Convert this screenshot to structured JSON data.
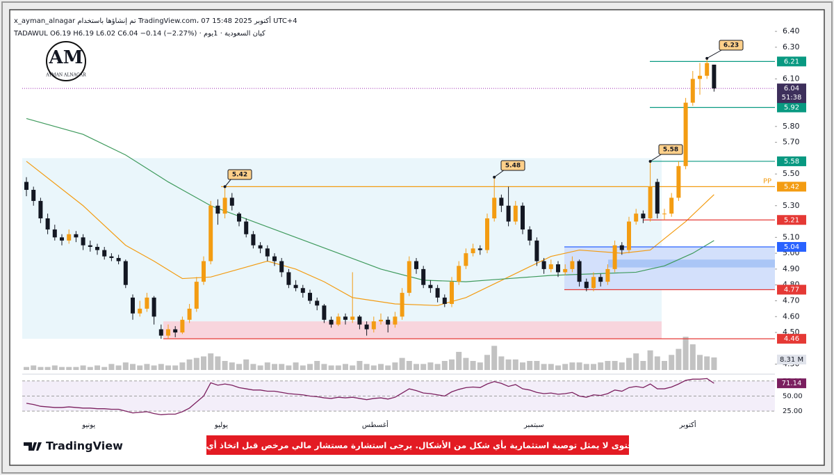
{
  "header": {
    "line1": "x_ayman_alnagar تم إنشاؤها باستخدام TradingView.com، 07 أكتوبر 2025 15:48 UTC+4",
    "line2": "كيان السعودية · 1يوم · TADAWUL   O6.19  H6.19  L6.02  C6.04  −0.14 (−2.27%)"
  },
  "logo": {
    "initials": "AM",
    "name": "AYMAN ALNAGAR"
  },
  "footer": {
    "brand": "TradingView",
    "disclaimer": "هذا المحتوى لا يمثل توصية استثمارية بأي شكل من الأشكال. يرجى استشارة مستشار مالي مرخص قبل اتخاذ أي قرارات"
  },
  "chart_data": {
    "type": "candlestick",
    "up_color": "#f39c12",
    "down_color": "#131722",
    "ylim": [
      4.25,
      6.44
    ],
    "yticks": [
      {
        "value": 6.4,
        "label": "6.40"
      },
      {
        "value": 6.3,
        "label": "6.30"
      },
      {
        "value": 6.1,
        "label": "6.10"
      },
      {
        "value": 5.8,
        "label": "5.80"
      },
      {
        "value": 5.7,
        "label": "5.70"
      },
      {
        "value": 5.5,
        "label": "5.50"
      },
      {
        "value": 5.3,
        "label": "5.30"
      },
      {
        "value": 5.1,
        "label": "5.10"
      },
      {
        "value": 5,
        "label": "5.00"
      },
      {
        "value": 4.9,
        "label": "4.90"
      },
      {
        "value": 4.8,
        "label": "4.80"
      },
      {
        "value": 4.7,
        "label": "4.70"
      },
      {
        "value": 4.6,
        "label": "4.60"
      },
      {
        "value": 4.5,
        "label": "4.50"
      },
      {
        "value": 4.3,
        "label": "4.30"
      }
    ],
    "xticks": [
      {
        "value": 8.8,
        "label": "يونيو"
      },
      {
        "value": 27.5,
        "label": "يوليو"
      },
      {
        "value": 49.2,
        "label": "أغسطس"
      },
      {
        "value": 71.6,
        "label": "سبتمبر"
      },
      {
        "value": 93.3,
        "label": "أكتوبر"
      }
    ],
    "ohlc": [
      [
        5.45,
        5.48,
        5.36,
        5.4
      ],
      [
        5.4,
        5.42,
        5.3,
        5.33
      ],
      [
        5.33,
        5.35,
        5.19,
        5.22
      ],
      [
        5.22,
        5.25,
        5.12,
        5.15
      ],
      [
        5.15,
        5.18,
        5.08,
        5.1
      ],
      [
        5.1,
        5.12,
        5.05,
        5.08
      ],
      [
        5.08,
        5.15,
        5.06,
        5.12
      ],
      [
        5.12,
        5.14,
        5.07,
        5.1
      ],
      [
        5.1,
        5.12,
        5.02,
        5.05
      ],
      [
        5.05,
        5.08,
        5.01,
        5.04
      ],
      [
        5.04,
        5.06,
        4.99,
        5.02
      ],
      [
        5.02,
        5.04,
        4.96,
        4.98
      ],
      [
        4.98,
        5.0,
        4.95,
        4.97
      ],
      [
        4.97,
        4.99,
        4.93,
        4.95
      ],
      [
        4.95,
        4.96,
        4.78,
        4.8
      ],
      [
        4.72,
        4.74,
        4.58,
        4.62
      ],
      [
        4.62,
        4.7,
        4.6,
        4.65
      ],
      [
        4.65,
        4.75,
        4.63,
        4.72
      ],
      [
        4.72,
        4.73,
        4.55,
        4.6
      ],
      [
        4.52,
        4.55,
        4.46,
        4.48
      ],
      [
        4.48,
        4.55,
        4.46,
        4.52
      ],
      [
        4.52,
        4.54,
        4.47,
        4.5
      ],
      [
        4.5,
        4.6,
        4.49,
        4.58
      ],
      [
        4.58,
        4.68,
        4.56,
        4.65
      ],
      [
        4.65,
        4.85,
        4.63,
        4.82
      ],
      [
        4.82,
        4.98,
        4.8,
        4.95
      ],
      [
        4.95,
        5.33,
        4.93,
        5.3
      ],
      [
        5.3,
        5.34,
        5.18,
        5.25
      ],
      [
        5.25,
        5.42,
        5.22,
        5.35
      ],
      [
        5.35,
        5.38,
        5.27,
        5.3
      ],
      [
        5.25,
        5.26,
        5.17,
        5.2
      ],
      [
        5.2,
        5.22,
        5.1,
        5.12
      ],
      [
        5.12,
        5.14,
        5.03,
        5.05
      ],
      [
        5.05,
        5.07,
        5.0,
        5.03
      ],
      [
        5.03,
        5.05,
        4.95,
        4.98
      ],
      [
        4.98,
        5.0,
        4.92,
        4.95
      ],
      [
        4.95,
        4.97,
        4.85,
        4.88
      ],
      [
        4.88,
        4.9,
        4.78,
        4.8
      ],
      [
        4.8,
        4.83,
        4.76,
        4.78
      ],
      [
        4.78,
        4.8,
        4.72,
        4.75
      ],
      [
        4.75,
        4.77,
        4.68,
        4.7
      ],
      [
        4.7,
        4.72,
        4.64,
        4.67
      ],
      [
        4.67,
        4.68,
        4.56,
        4.58
      ],
      [
        4.58,
        4.6,
        4.53,
        4.55
      ],
      [
        4.55,
        4.62,
        4.54,
        4.6
      ],
      [
        4.6,
        4.62,
        4.55,
        4.58
      ],
      [
        4.58,
        4.88,
        4.56,
        4.6
      ],
      [
        4.6,
        4.61,
        4.52,
        4.55
      ],
      [
        4.55,
        4.57,
        4.48,
        4.52
      ],
      [
        4.52,
        4.6,
        4.5,
        4.57
      ],
      [
        4.57,
        4.62,
        4.55,
        4.58
      ],
      [
        4.58,
        4.6,
        4.5,
        4.55
      ],
      [
        4.55,
        4.63,
        4.53,
        4.6
      ],
      [
        4.6,
        4.78,
        4.58,
        4.75
      ],
      [
        4.75,
        4.98,
        4.73,
        4.95
      ],
      [
        4.95,
        4.97,
        4.87,
        4.9
      ],
      [
        4.9,
        4.92,
        4.78,
        4.8
      ],
      [
        4.8,
        4.83,
        4.75,
        4.78
      ],
      [
        4.78,
        4.8,
        4.69,
        4.72
      ],
      [
        4.72,
        4.74,
        4.66,
        4.68
      ],
      [
        4.68,
        4.85,
        4.66,
        4.82
      ],
      [
        4.82,
        4.95,
        4.8,
        4.92
      ],
      [
        4.92,
        5.03,
        4.9,
        5.0
      ],
      [
        5.0,
        5.06,
        4.98,
        5.03
      ],
      [
        5.03,
        5.05,
        4.99,
        5.02
      ],
      [
        5.02,
        5.25,
        5.0,
        5.22
      ],
      [
        5.22,
        5.48,
        5.2,
        5.35
      ],
      [
        5.35,
        5.37,
        5.26,
        5.3
      ],
      [
        5.3,
        5.42,
        5.17,
        5.2
      ],
      [
        5.2,
        5.33,
        5.18,
        5.3
      ],
      [
        5.3,
        5.32,
        5.12,
        5.15
      ],
      [
        5.15,
        5.17,
        5.05,
        5.08
      ],
      [
        5.08,
        5.1,
        4.92,
        4.95
      ],
      [
        4.95,
        4.97,
        4.87,
        4.9
      ],
      [
        4.9,
        4.96,
        4.88,
        4.93
      ],
      [
        4.93,
        4.95,
        4.85,
        4.88
      ],
      [
        4.88,
        4.93,
        4.86,
        4.9
      ],
      [
        4.9,
        4.98,
        4.88,
        4.95
      ],
      [
        4.95,
        4.96,
        4.79,
        4.82
      ],
      [
        4.82,
        4.84,
        4.76,
        4.78
      ],
      [
        4.78,
        4.88,
        4.76,
        4.85
      ],
      [
        4.85,
        4.87,
        4.79,
        4.82
      ],
      [
        4.82,
        4.93,
        4.8,
        4.9
      ],
      [
        4.9,
        5.08,
        4.88,
        5.05
      ],
      [
        5.05,
        5.07,
        4.99,
        5.02
      ],
      [
        5.02,
        5.23,
        5.0,
        5.2
      ],
      [
        5.2,
        5.28,
        5.18,
        5.25
      ],
      [
        5.25,
        5.27,
        5.19,
        5.22
      ],
      [
        5.22,
        5.58,
        5.2,
        5.42
      ],
      [
        5.45,
        5.47,
        5.22,
        5.25
      ],
      [
        5.25,
        5.28,
        5.21,
        5.25
      ],
      [
        5.25,
        5.38,
        5.23,
        5.35
      ],
      [
        5.35,
        5.58,
        5.33,
        5.55
      ],
      [
        5.55,
        5.98,
        5.53,
        5.95
      ],
      [
        5.95,
        6.15,
        5.93,
        6.1
      ],
      [
        6.1,
        6.2,
        6.0,
        6.12
      ],
      [
        6.12,
        6.23,
        6.1,
        6.2
      ],
      [
        6.19,
        6.19,
        6.02,
        6.04
      ]
    ],
    "moving_averages": [
      {
        "color": "#f39c12",
        "x": [
          0,
          8,
          14,
          18,
          22,
          26,
          30,
          34,
          38,
          42,
          46,
          52,
          58,
          62,
          68,
          74,
          78,
          84,
          88,
          93,
          97
        ],
        "values": [
          5.58,
          5.3,
          5.05,
          4.95,
          4.84,
          4.85,
          4.9,
          4.95,
          4.9,
          4.82,
          4.72,
          4.68,
          4.67,
          4.72,
          4.85,
          4.98,
          5.02,
          5.0,
          5.02,
          5.2,
          5.37
        ]
      },
      {
        "color": "#3e9a5c",
        "x": [
          0,
          8,
          14,
          20,
          26,
          32,
          38,
          44,
          50,
          56,
          62,
          68,
          74,
          80,
          86,
          90,
          94,
          97
        ],
        "values": [
          5.85,
          5.75,
          5.62,
          5.45,
          5.3,
          5.2,
          5.1,
          5.0,
          4.9,
          4.83,
          4.82,
          4.84,
          4.86,
          4.87,
          4.88,
          4.92,
          5.0,
          5.08
        ]
      }
    ],
    "zones": [
      {
        "from": 4.46,
        "to": 5.6,
        "color": "#eaf6fb"
      },
      {
        "from": 4.46,
        "to": 4.57,
        "color": "#f8d5dd"
      },
      {
        "from": 4.77,
        "to": 5.04,
        "color": "#d3e0fb"
      },
      {
        "from": 4.91,
        "to": 4.96,
        "color": "#aac6f6"
      }
    ],
    "levels": [
      {
        "value": 6.21,
        "label": "6.21",
        "color": "#089981"
      },
      {
        "value": 5.92,
        "label": "5.92",
        "color": "#089981"
      },
      {
        "value": 5.58,
        "label": "5.58",
        "color": "#089981"
      },
      {
        "value": 5.42,
        "label": "5.42",
        "color": "#f39c12",
        "tag": "PP"
      },
      {
        "value": 5.21,
        "label": "5.21",
        "color": "#e53935"
      },
      {
        "value": 5.04,
        "label": "5.04",
        "color": "#2962ff"
      },
      {
        "value": 4.77,
        "label": "4.77",
        "color": "#e53935"
      },
      {
        "value": 4.46,
        "label": "4.46",
        "color": "#e53935"
      }
    ],
    "callouts": [
      {
        "value": 6.23,
        "label": "6.23"
      },
      {
        "value": 5.58,
        "label": "5.58"
      },
      {
        "value": 5.48,
        "label": "5.48"
      },
      {
        "value": 5.42,
        "label": "5.42"
      }
    ],
    "last_price": {
      "value": 6.04,
      "label": "6.04",
      "countdown": "51:38",
      "color": "#3d2f5b"
    },
    "volume": {
      "label": "8.31 M",
      "color": "#c2c2c2",
      "values": [
        2,
        3,
        2,
        2,
        3,
        2,
        2,
        2,
        3,
        2,
        3,
        2,
        4,
        3,
        5,
        4,
        3,
        4,
        3,
        4,
        3,
        3,
        5,
        7,
        8,
        9,
        11,
        9,
        6,
        5,
        4,
        7,
        4,
        3,
        5,
        4,
        4,
        3,
        5,
        3,
        4,
        6,
        4,
        3,
        3,
        4,
        3,
        6,
        4,
        3,
        4,
        3,
        5,
        8,
        6,
        4,
        4,
        5,
        4,
        6,
        7,
        12,
        8,
        6,
        5,
        10,
        16,
        9,
        7,
        7,
        5,
        6,
        6,
        4,
        4,
        3,
        4,
        5,
        5,
        4,
        4,
        5,
        6,
        6,
        5,
        8,
        11,
        6,
        13,
        9,
        6,
        10,
        14,
        22,
        17,
        10,
        9,
        8.31
      ]
    },
    "rsi": {
      "color": "#7b1f5f",
      "ylim": [
        9,
        84
      ],
      "label": "71.14",
      "yticks": [
        {
          "value": 75,
          "label": "75.00"
        },
        {
          "value": 50,
          "label": "50.00"
        },
        {
          "value": 25,
          "label": "25.00"
        }
      ],
      "values": [
        38,
        36,
        33,
        32,
        31,
        31,
        32,
        31,
        30,
        30,
        29,
        29,
        28,
        28,
        25,
        22,
        23,
        24,
        21,
        19,
        20,
        20,
        24,
        30,
        40,
        50,
        72,
        68,
        70,
        68,
        64,
        62,
        60,
        60,
        58,
        58,
        56,
        54,
        53,
        52,
        50,
        49,
        47,
        46,
        48,
        47,
        48,
        46,
        44,
        46,
        47,
        45,
        48,
        55,
        62,
        59,
        55,
        54,
        52,
        50,
        57,
        61,
        64,
        65,
        64,
        70,
        74,
        71,
        66,
        69,
        62,
        60,
        56,
        54,
        55,
        53,
        54,
        56,
        50,
        48,
        52,
        51,
        54,
        60,
        58,
        64,
        66,
        64,
        70,
        62,
        62,
        65,
        70,
        76,
        78,
        78,
        79,
        71.14
      ]
    }
  }
}
